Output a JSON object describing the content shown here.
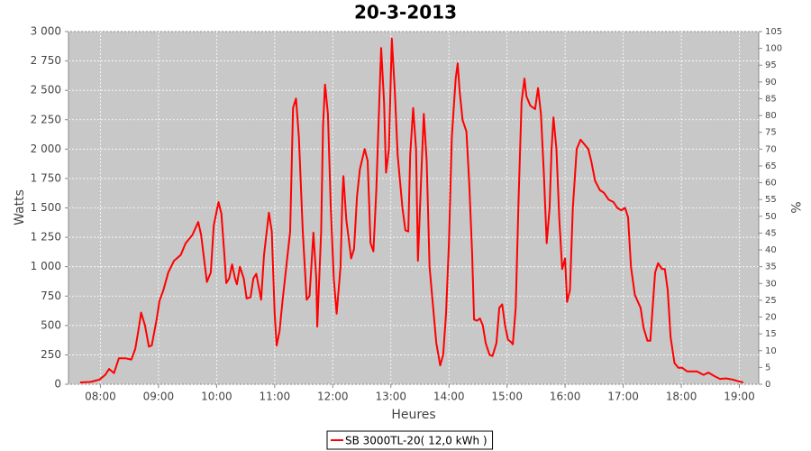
{
  "chart_data": {
    "type": "line",
    "title": "20-3-2013",
    "x_label": "Heures",
    "y_label": "Watts",
    "y2_label": "%",
    "x": [
      "07:39",
      "07:50",
      "07:59",
      "08:05",
      "08:09",
      "08:14",
      "08:19",
      "08:26",
      "08:32",
      "08:36",
      "08:39",
      "08:42",
      "08:46",
      "08:50",
      "08:53",
      "08:58",
      "09:01",
      "09:05",
      "09:10",
      "09:16",
      "09:23",
      "09:28",
      "09:35",
      "09:41",
      "09:44",
      "09:50",
      "09:54",
      "09:57",
      "10:02",
      "10:05",
      "10:08",
      "10:10",
      "10:13",
      "10:16",
      "10:19",
      "10:21",
      "10:24",
      "10:28",
      "10:31",
      "10:35",
      "10:38",
      "10:41",
      "10:46",
      "10:49",
      "10:54",
      "10:57",
      "11:00",
      "11:02",
      "11:05",
      "11:08",
      "11:12",
      "11:16",
      "11:19",
      "11:22",
      "11:25",
      "11:29",
      "11:33",
      "11:36",
      "11:40",
      "11:43",
      "11:44",
      "11:48",
      "11:50",
      "11:52",
      "11:55",
      "11:58",
      "12:01",
      "12:04",
      "12:08",
      "12:10",
      "12:11",
      "12:14",
      "12:19",
      "12:22",
      "12:25",
      "12:28",
      "12:33",
      "12:36",
      "12:39",
      "12:42",
      "12:45",
      "12:48",
      "12:50",
      "12:53",
      "12:55",
      "12:58",
      "13:01",
      "13:04",
      "13:07",
      "13:12",
      "13:15",
      "13:18",
      "13:20",
      "13:23",
      "13:26",
      "13:28",
      "13:31",
      "13:34",
      "13:37",
      "13:40",
      "13:43",
      "13:47",
      "13:51",
      "13:54",
      "13:57",
      "14:00",
      "14:03",
      "14:07",
      "14:09",
      "14:11",
      "14:14",
      "14:18",
      "14:21",
      "14:24",
      "14:26",
      "14:29",
      "14:32",
      "14:35",
      "14:38",
      "14:42",
      "14:45",
      "14:49",
      "14:52",
      "14:55",
      "14:58",
      "15:01",
      "15:04",
      "15:06",
      "15:09",
      "15:12",
      "15:15",
      "15:18",
      "15:20",
      "15:24",
      "15:29",
      "15:32",
      "15:35",
      "15:38",
      "15:41",
      "15:44",
      "15:46",
      "15:48",
      "15:51",
      "15:54",
      "15:57",
      "16:00",
      "16:02",
      "16:05",
      "16:08",
      "16:12",
      "16:16",
      "16:19",
      "16:24",
      "16:27",
      "16:31",
      "16:36",
      "16:40",
      "16:45",
      "16:50",
      "16:54",
      "16:58",
      "17:02",
      "17:05",
      "17:08",
      "17:12",
      "17:18",
      "17:21",
      "17:25",
      "17:28",
      "17:30",
      "17:33",
      "17:36",
      "17:40",
      "17:43",
      "17:46",
      "17:49",
      "17:53",
      "17:57",
      "18:01",
      "18:06",
      "18:12",
      "18:16",
      "18:23",
      "18:28",
      "18:34",
      "18:40",
      "18:46",
      "18:53",
      "18:59",
      "19:04"
    ],
    "series": [
      {
        "name": "SB 3000TL-20( 12,0 kWh )",
        "color": "#ff0000",
        "values": [
          15,
          20,
          40,
          80,
          130,
          95,
          220,
          220,
          210,
          300,
          450,
          610,
          500,
          320,
          330,
          550,
          710,
          800,
          950,
          1050,
          1100,
          1200,
          1270,
          1380,
          1270,
          870,
          950,
          1350,
          1550,
          1450,
          1100,
          860,
          900,
          1020,
          900,
          850,
          1000,
          900,
          730,
          740,
          900,
          940,
          720,
          1100,
          1460,
          1300,
          600,
          330,
          450,
          700,
          1000,
          1300,
          2350,
          2430,
          2100,
          1300,
          720,
          750,
          1290,
          900,
          490,
          1300,
          2200,
          2550,
          2300,
          1500,
          900,
          600,
          1000,
          1600,
          1770,
          1400,
          1070,
          1150,
          1600,
          1830,
          2000,
          1900,
          1200,
          1130,
          1650,
          2400,
          2860,
          2400,
          1800,
          2000,
          2940,
          2500,
          1950,
          1500,
          1310,
          1300,
          1950,
          2350,
          2000,
          1050,
          1700,
          2300,
          1900,
          1000,
          720,
          350,
          160,
          250,
          600,
          1200,
          2100,
          2600,
          2730,
          2500,
          2250,
          2150,
          1700,
          1100,
          550,
          540,
          560,
          500,
          350,
          250,
          240,
          350,
          650,
          680,
          500,
          380,
          360,
          340,
          650,
          1600,
          2400,
          2600,
          2450,
          2370,
          2340,
          2520,
          2300,
          1800,
          1200,
          1500,
          2000,
          2270,
          2000,
          1400,
          980,
          1070,
          700,
          800,
          1500,
          2000,
          2080,
          2050,
          2000,
          1900,
          1730,
          1650,
          1630,
          1570,
          1550,
          1500,
          1480,
          1500,
          1420,
          1000,
          760,
          650,
          480,
          370,
          370,
          600,
          950,
          1030,
          980,
          980,
          800,
          400,
          180,
          140,
          140,
          110,
          110,
          110,
          80,
          100,
          70,
          45,
          50,
          40,
          25,
          15
        ]
      }
    ],
    "xlim": [
      "07:27",
      "19:20"
    ],
    "xticks": [
      "08:00",
      "09:00",
      "10:00",
      "11:00",
      "12:00",
      "13:00",
      "14:00",
      "15:00",
      "16:00",
      "17:00",
      "18:00",
      "19:00"
    ],
    "ylim": [
      0,
      3000
    ],
    "yticks": [
      0,
      250,
      500,
      750,
      {
        "value": 1000,
        "label": "1 000"
      },
      {
        "value": 1250,
        "label": "1 250"
      },
      {
        "value": 1500,
        "label": "1 500"
      },
      {
        "value": 1750,
        "label": "1 750"
      },
      {
        "value": 2000,
        "label": "2 000"
      },
      {
        "value": 2250,
        "label": "2 250"
      },
      {
        "value": 2500,
        "label": "2 500"
      },
      {
        "value": 2750,
        "label": "2 750"
      },
      {
        "value": 3000,
        "label": "3 000"
      }
    ],
    "y2lim": [
      0,
      105
    ],
    "y2ticks": [
      0,
      5,
      10,
      15,
      20,
      25,
      30,
      35,
      40,
      45,
      50,
      55,
      60,
      65,
      70,
      75,
      80,
      85,
      90,
      95,
      100,
      105
    ],
    "grid": true,
    "legend": "bottom"
  }
}
